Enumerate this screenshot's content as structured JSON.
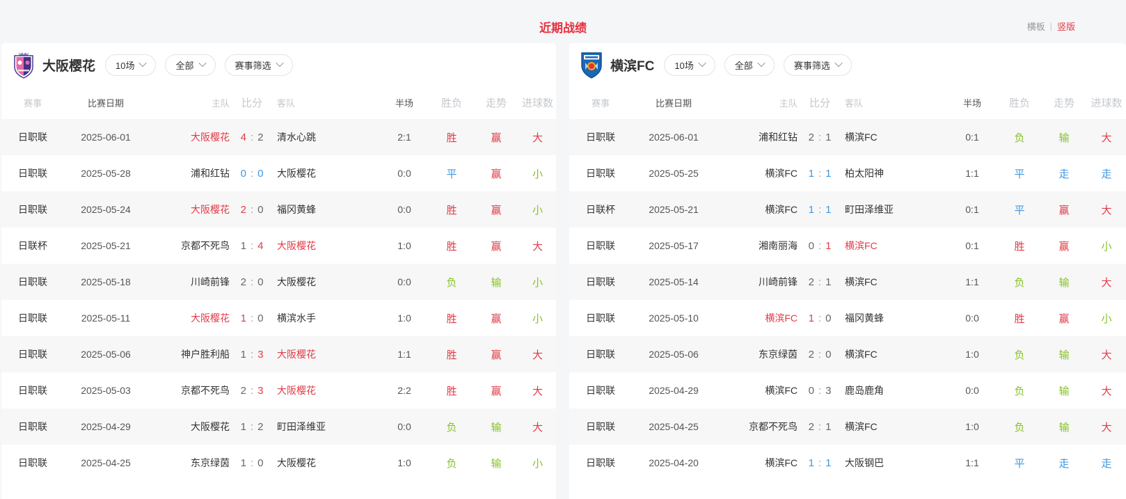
{
  "page_title": "近期战绩",
  "view_toggle": {
    "horizontal_label": "横板",
    "vertical_label": "竖版",
    "active": "竖版"
  },
  "filters": {
    "matches": "10场",
    "scope": "全部",
    "competition": "赛事筛选"
  },
  "table": {
    "columns": [
      "赛事",
      "比赛日期",
      "主队",
      "比分",
      "客队",
      "半场",
      "胜负",
      "走势",
      "进球数"
    ]
  },
  "icons": {
    "left_logo": "cerezo-osaka-crest",
    "right_logo": "yokohama-fc-crest",
    "pill_caret": "chevron-down-icon"
  },
  "colors": {
    "red": "#e23b47",
    "green": "#85c226",
    "blue": "#3e97e0",
    "gray": "#666666",
    "dark": "#333333",
    "title_red": "#e8313f",
    "stripe": "#f7f7f7"
  },
  "panels": [
    {
      "team": "大阪樱花",
      "rows": [
        {
          "league": "日职联",
          "date": "2025-06-01",
          "home": "大阪樱花",
          "home_color": "red",
          "score": [
            "4",
            "2"
          ],
          "score_colors": [
            "red",
            "gray"
          ],
          "away": "清水心跳",
          "away_color": "dark",
          "half": "2:1",
          "result": "胜",
          "result_color": "red",
          "trend": "赢",
          "trend_color": "red",
          "goals": "大",
          "goals_color": "red"
        },
        {
          "league": "日职联",
          "date": "2025-05-28",
          "home": "浦和红钻",
          "home_color": "dark",
          "score": [
            "0",
            "0"
          ],
          "score_colors": [
            "blue",
            "blue"
          ],
          "away": "大阪樱花",
          "away_color": "dark",
          "half": "0:0",
          "result": "平",
          "result_color": "blue",
          "trend": "赢",
          "trend_color": "red",
          "goals": "小",
          "goals_color": "green"
        },
        {
          "league": "日职联",
          "date": "2025-05-24",
          "home": "大阪樱花",
          "home_color": "red",
          "score": [
            "2",
            "0"
          ],
          "score_colors": [
            "red",
            "gray"
          ],
          "away": "福冈黄蜂",
          "away_color": "dark",
          "half": "0:0",
          "result": "胜",
          "result_color": "red",
          "trend": "赢",
          "trend_color": "red",
          "goals": "小",
          "goals_color": "green"
        },
        {
          "league": "日联杯",
          "date": "2025-05-21",
          "home": "京都不死鸟",
          "home_color": "dark",
          "score": [
            "1",
            "4"
          ],
          "score_colors": [
            "gray",
            "red"
          ],
          "away": "大阪樱花",
          "away_color": "red",
          "half": "1:0",
          "result": "胜",
          "result_color": "red",
          "trend": "赢",
          "trend_color": "red",
          "goals": "大",
          "goals_color": "red"
        },
        {
          "league": "日职联",
          "date": "2025-05-18",
          "home": "川崎前锋",
          "home_color": "dark",
          "score": [
            "2",
            "0"
          ],
          "score_colors": [
            "gray",
            "gray"
          ],
          "away": "大阪樱花",
          "away_color": "dark",
          "half": "0:0",
          "result": "负",
          "result_color": "green",
          "trend": "输",
          "trend_color": "green",
          "goals": "小",
          "goals_color": "green"
        },
        {
          "league": "日职联",
          "date": "2025-05-11",
          "home": "大阪樱花",
          "home_color": "red",
          "score": [
            "1",
            "0"
          ],
          "score_colors": [
            "red",
            "gray"
          ],
          "away": "横滨水手",
          "away_color": "dark",
          "half": "1:0",
          "result": "胜",
          "result_color": "red",
          "trend": "赢",
          "trend_color": "red",
          "goals": "小",
          "goals_color": "green"
        },
        {
          "league": "日职联",
          "date": "2025-05-06",
          "home": "神户胜利船",
          "home_color": "dark",
          "score": [
            "1",
            "3"
          ],
          "score_colors": [
            "gray",
            "red"
          ],
          "away": "大阪樱花",
          "away_color": "red",
          "half": "1:1",
          "result": "胜",
          "result_color": "red",
          "trend": "赢",
          "trend_color": "red",
          "goals": "大",
          "goals_color": "red"
        },
        {
          "league": "日职联",
          "date": "2025-05-03",
          "home": "京都不死鸟",
          "home_color": "dark",
          "score": [
            "2",
            "3"
          ],
          "score_colors": [
            "gray",
            "red"
          ],
          "away": "大阪樱花",
          "away_color": "red",
          "half": "2:2",
          "result": "胜",
          "result_color": "red",
          "trend": "赢",
          "trend_color": "red",
          "goals": "大",
          "goals_color": "red"
        },
        {
          "league": "日职联",
          "date": "2025-04-29",
          "home": "大阪樱花",
          "home_color": "dark",
          "score": [
            "1",
            "2"
          ],
          "score_colors": [
            "gray",
            "gray"
          ],
          "away": "町田泽维亚",
          "away_color": "dark",
          "half": "0:0",
          "result": "负",
          "result_color": "green",
          "trend": "输",
          "trend_color": "green",
          "goals": "大",
          "goals_color": "red"
        },
        {
          "league": "日职联",
          "date": "2025-04-25",
          "home": "东京绿茵",
          "home_color": "dark",
          "score": [
            "1",
            "0"
          ],
          "score_colors": [
            "gray",
            "gray"
          ],
          "away": "大阪樱花",
          "away_color": "dark",
          "half": "1:0",
          "result": "负",
          "result_color": "green",
          "trend": "输",
          "trend_color": "green",
          "goals": "小",
          "goals_color": "green"
        }
      ]
    },
    {
      "team": "横滨FC",
      "rows": [
        {
          "league": "日职联",
          "date": "2025-06-01",
          "home": "浦和红钻",
          "home_color": "dark",
          "score": [
            "2",
            "1"
          ],
          "score_colors": [
            "gray",
            "gray"
          ],
          "away": "横滨FC",
          "away_color": "dark",
          "half": "0:1",
          "result": "负",
          "result_color": "green",
          "trend": "输",
          "trend_color": "green",
          "goals": "大",
          "goals_color": "red"
        },
        {
          "league": "日职联",
          "date": "2025-05-25",
          "home": "横滨FC",
          "home_color": "dark",
          "score": [
            "1",
            "1"
          ],
          "score_colors": [
            "blue",
            "blue"
          ],
          "away": "柏太阳神",
          "away_color": "dark",
          "half": "1:1",
          "result": "平",
          "result_color": "blue",
          "trend": "走",
          "trend_color": "blue",
          "goals": "走",
          "goals_color": "blue"
        },
        {
          "league": "日联杯",
          "date": "2025-05-21",
          "home": "横滨FC",
          "home_color": "dark",
          "score": [
            "1",
            "1"
          ],
          "score_colors": [
            "blue",
            "blue"
          ],
          "away": "町田泽维亚",
          "away_color": "dark",
          "half": "0:1",
          "result": "平",
          "result_color": "blue",
          "trend": "赢",
          "trend_color": "red",
          "goals": "大",
          "goals_color": "red"
        },
        {
          "league": "日职联",
          "date": "2025-05-17",
          "home": "湘南丽海",
          "home_color": "dark",
          "score": [
            "0",
            "1"
          ],
          "score_colors": [
            "gray",
            "red"
          ],
          "away": "横滨FC",
          "away_color": "red",
          "half": "0:1",
          "result": "胜",
          "result_color": "red",
          "trend": "赢",
          "trend_color": "red",
          "goals": "小",
          "goals_color": "green"
        },
        {
          "league": "日职联",
          "date": "2025-05-14",
          "home": "川崎前锋",
          "home_color": "dark",
          "score": [
            "2",
            "1"
          ],
          "score_colors": [
            "gray",
            "gray"
          ],
          "away": "横滨FC",
          "away_color": "dark",
          "half": "1:1",
          "result": "负",
          "result_color": "green",
          "trend": "输",
          "trend_color": "green",
          "goals": "大",
          "goals_color": "red"
        },
        {
          "league": "日职联",
          "date": "2025-05-10",
          "home": "横滨FC",
          "home_color": "red",
          "score": [
            "1",
            "0"
          ],
          "score_colors": [
            "red",
            "gray"
          ],
          "away": "福冈黄蜂",
          "away_color": "dark",
          "half": "0:0",
          "result": "胜",
          "result_color": "red",
          "trend": "赢",
          "trend_color": "red",
          "goals": "小",
          "goals_color": "green"
        },
        {
          "league": "日职联",
          "date": "2025-05-06",
          "home": "东京绿茵",
          "home_color": "dark",
          "score": [
            "2",
            "0"
          ],
          "score_colors": [
            "gray",
            "gray"
          ],
          "away": "横滨FC",
          "away_color": "dark",
          "half": "1:0",
          "result": "负",
          "result_color": "green",
          "trend": "输",
          "trend_color": "green",
          "goals": "大",
          "goals_color": "red"
        },
        {
          "league": "日职联",
          "date": "2025-04-29",
          "home": "横滨FC",
          "home_color": "dark",
          "score": [
            "0",
            "3"
          ],
          "score_colors": [
            "gray",
            "gray"
          ],
          "away": "鹿岛鹿角",
          "away_color": "dark",
          "half": "0:0",
          "result": "负",
          "result_color": "green",
          "trend": "输",
          "trend_color": "green",
          "goals": "大",
          "goals_color": "red"
        },
        {
          "league": "日职联",
          "date": "2025-04-25",
          "home": "京都不死鸟",
          "home_color": "dark",
          "score": [
            "2",
            "1"
          ],
          "score_colors": [
            "gray",
            "gray"
          ],
          "away": "横滨FC",
          "away_color": "dark",
          "half": "1:0",
          "result": "负",
          "result_color": "green",
          "trend": "输",
          "trend_color": "green",
          "goals": "大",
          "goals_color": "red"
        },
        {
          "league": "日职联",
          "date": "2025-04-20",
          "home": "横滨FC",
          "home_color": "dark",
          "score": [
            "1",
            "1"
          ],
          "score_colors": [
            "blue",
            "blue"
          ],
          "away": "大阪钢巴",
          "away_color": "dark",
          "half": "1:1",
          "result": "平",
          "result_color": "blue",
          "trend": "走",
          "trend_color": "blue",
          "goals": "走",
          "goals_color": "blue"
        }
      ]
    }
  ]
}
